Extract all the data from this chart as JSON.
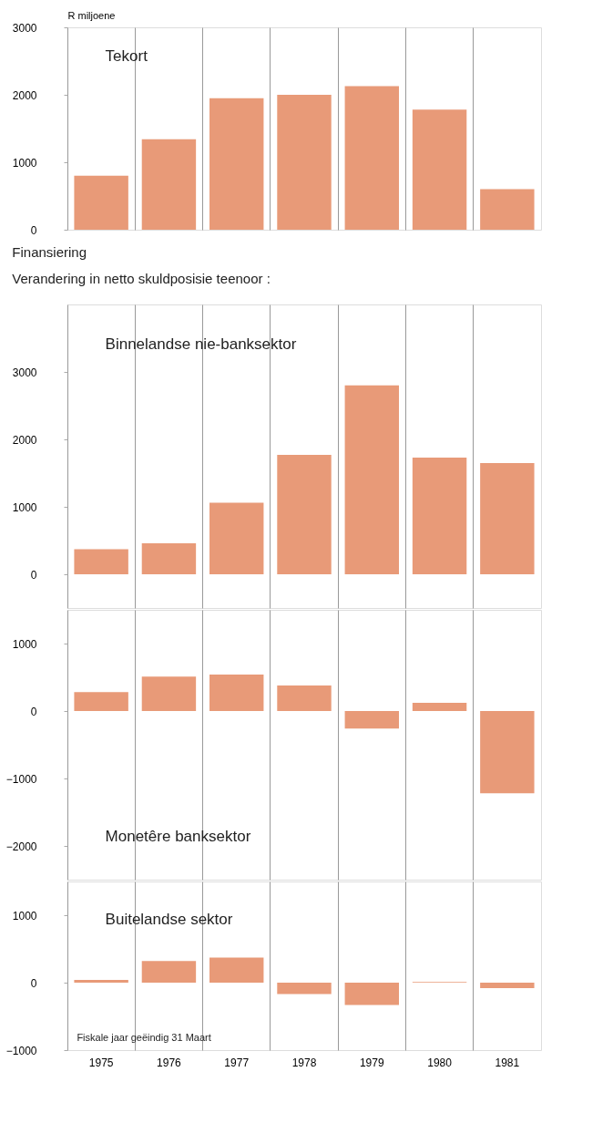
{
  "chart_data": [
    {
      "type": "bar",
      "annotations": [
        "Tekort"
      ],
      "ylabel": "R miljoene",
      "categories": [
        "1975",
        "1976",
        "1977",
        "1978",
        "1979",
        "1980",
        "1981"
      ],
      "values": [
        800,
        1340,
        1950,
        2000,
        2130,
        1780,
        600
      ],
      "color": "#e89a78",
      "ylim": [
        0,
        3000
      ],
      "yticks": [
        0,
        1000,
        2000,
        3000
      ],
      "grid": "x",
      "tick_labels": "y"
    },
    {
      "type": "bar",
      "title": "Finansiering",
      "subtitle": "Verandering in netto skuldposisie teenoor :",
      "annotations": [
        "Binnelandse nie-banksektor"
      ],
      "categories": [
        "1975",
        "1976",
        "1977",
        "1978",
        "1979",
        "1980",
        "1981"
      ],
      "values": [
        370,
        460,
        1060,
        1770,
        2800,
        1730,
        1650
      ],
      "color": "#e89a78",
      "ylim": [
        -500,
        4000
      ],
      "yticks": [
        0,
        1000,
        2000,
        3000
      ],
      "grid": "x",
      "tick_labels": "y"
    },
    {
      "type": "bar",
      "annotations": [
        "Monetêre banksektor"
      ],
      "categories": [
        "1975",
        "1976",
        "1977",
        "1978",
        "1979",
        "1980",
        "1981"
      ],
      "values": [
        280,
        510,
        540,
        380,
        -260,
        120,
        -1220
      ],
      "color": "#e89a78",
      "ylim": [
        -2500,
        1500
      ],
      "yticks": [
        -2000,
        -1000,
        0,
        1000
      ],
      "grid": "x",
      "tick_labels": "y"
    },
    {
      "type": "bar",
      "annotations": [
        "Buitelandse sektor",
        "Fiskale jaar geëindig 31 Maart"
      ],
      "categories": [
        "1975",
        "1976",
        "1977",
        "1978",
        "1979",
        "1980",
        "1981"
      ],
      "values": [
        40,
        320,
        370,
        -170,
        -330,
        10,
        -80
      ],
      "color": "#e89a78",
      "ylim": [
        -1000,
        1500
      ],
      "yticks": [
        -1000,
        0,
        1000
      ],
      "grid": "x"
    }
  ]
}
